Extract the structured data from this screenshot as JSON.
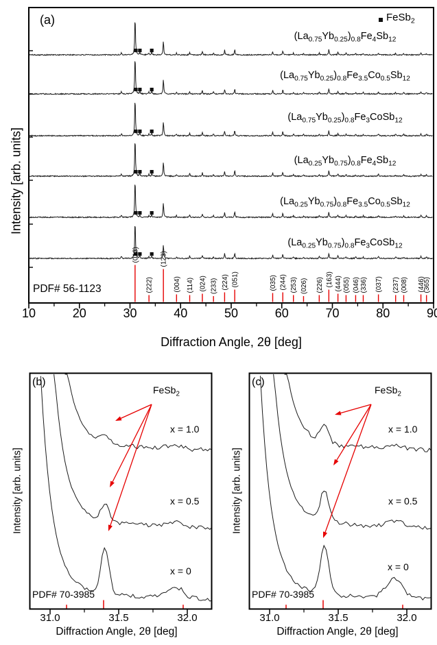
{
  "chart_data": [
    {
      "id": "a",
      "type": "line",
      "panel_tag": "(a)",
      "xlabel": "Diffraction Angle, 2θ [deg]",
      "ylabel": "Intensity [arb. units]",
      "xlim": [
        10,
        90
      ],
      "xticks": [
        "10",
        "20",
        "30",
        "40",
        "50",
        "60",
        "70",
        "80",
        "90"
      ],
      "x_minor_step": 5,
      "legend": {
        "marker": "filled-black-square",
        "label": "FeSb_{2}"
      },
      "series": [
        {
          "label": "(La_{0.75}Yb_{0.25})_{0.8}Fe_{4}Sb_{12}"
        },
        {
          "label": "(La_{0.75}Yb_{0.25})_{0.8}Fe_{3.5}Co_{0.5}Sb_{12}"
        },
        {
          "label": "(La_{0.75}Yb_{0.25})_{0.8}Fe_{3}CoSb_{12}"
        },
        {
          "label": "(La_{0.25}Yb_{0.75})_{0.8}Fe_{4}Sb_{12}"
        },
        {
          "label": "(La_{0.25}Yb_{0.75})_{0.8}Fe_{3.5}Co_{0.5}Sb_{12}"
        },
        {
          "label": "(La_{0.25}Yb_{0.75})_{0.8}Fe_{3}CoSb_{12}"
        }
      ],
      "skutterudite_peaks": [
        [
          28.3,
          6
        ],
        [
          31.0,
          100
        ],
        [
          33.75,
          5
        ],
        [
          36.6,
          38
        ],
        [
          39.2,
          5
        ],
        [
          41.8,
          7
        ],
        [
          44.3,
          9
        ],
        [
          46.5,
          5
        ],
        [
          48.7,
          12
        ],
        [
          50.7,
          14
        ],
        [
          58.2,
          9
        ],
        [
          60.2,
          11
        ],
        [
          62.3,
          5
        ],
        [
          64.3,
          4
        ],
        [
          67.4,
          5
        ],
        [
          69.3,
          14
        ],
        [
          71.1,
          7
        ],
        [
          72.7,
          5
        ],
        [
          74.6,
          4
        ],
        [
          76.1,
          4
        ],
        [
          79.1,
          5
        ],
        [
          82.5,
          4
        ],
        [
          84.1,
          4
        ],
        [
          87.5,
          5
        ],
        [
          88.6,
          4
        ]
      ],
      "impurity_peaks": [
        [
          31.15,
          6
        ],
        [
          31.95,
          7
        ],
        [
          34.3,
          7
        ]
      ],
      "impurity_marker_two_theta": [
        31.15,
        31.95,
        34.3
      ],
      "pdf_reference": {
        "label": "PDF# 56-1123",
        "lines": [
          {
            "hkl": "(013)",
            "two_theta": 31.0,
            "rel": 100
          },
          {
            "hkl": "(222)",
            "two_theta": 33.75,
            "rel": 12
          },
          {
            "hkl": "(123)",
            "two_theta": 36.6,
            "rel": 88
          },
          {
            "hkl": "(004)",
            "two_theta": 39.2,
            "rel": 14
          },
          {
            "hkl": "(114)",
            "two_theta": 41.8,
            "rel": 12
          },
          {
            "hkl": "(024)",
            "two_theta": 44.3,
            "rel": 16
          },
          {
            "hkl": "(233)",
            "two_theta": 46.5,
            "rel": 9
          },
          {
            "hkl": "(224)",
            "two_theta": 48.7,
            "rel": 20
          },
          {
            "hkl": "(051)",
            "two_theta": 50.7,
            "rel": 28
          },
          {
            "hkl": "(035)",
            "two_theta": 58.2,
            "rel": 18
          },
          {
            "hkl": "(244)",
            "two_theta": 60.2,
            "rel": 20
          },
          {
            "hkl": "(253)",
            "two_theta": 62.3,
            "rel": 12
          },
          {
            "hkl": "(026)",
            "two_theta": 64.3,
            "rel": 9
          },
          {
            "hkl": "(226)",
            "two_theta": 67.4,
            "rel": 12
          },
          {
            "hkl": "(163)",
            "two_theta": 69.3,
            "rel": 28
          },
          {
            "hkl": "(444)",
            "two_theta": 71.1,
            "rel": 16
          },
          {
            "hkl": "(055)",
            "two_theta": 72.7,
            "rel": 12
          },
          {
            "hkl": "(046)",
            "two_theta": 74.6,
            "rel": 12
          },
          {
            "hkl": "(336)",
            "two_theta": 76.1,
            "rel": 12
          },
          {
            "hkl": "(037)",
            "two_theta": 79.1,
            "rel": 14
          },
          {
            "hkl": "(237)",
            "two_theta": 82.5,
            "rel": 12
          },
          {
            "hkl": "(008)",
            "two_theta": 84.1,
            "rel": 12
          },
          {
            "hkl": "(446)",
            "two_theta": 87.5,
            "rel": 14
          },
          {
            "hkl": "(365)",
            "two_theta": 88.6,
            "rel": 12
          }
        ]
      }
    },
    {
      "id": "b",
      "type": "line",
      "panel_tag": "(b)",
      "xlabel": "Diffraction Angle, 2θ [deg]",
      "ylabel": "Intensity [arb. units]",
      "xlim": [
        30.85,
        32.19
      ],
      "xticks": [
        "31.0",
        "31.5",
        "32.0"
      ],
      "xtick_values": [
        31.0,
        31.5,
        32.0
      ],
      "x_minor_step": 0.25,
      "annotation": "FeSb_{2}",
      "fesb2_peak_two_theta": 31.4,
      "pdf_reference": {
        "label": "PDF# 70-3985",
        "lines": [
          {
            "two_theta": 31.12,
            "rel": 25
          },
          {
            "two_theta": 31.39,
            "rel": 100
          },
          {
            "two_theta": 31.97,
            "rel": 25
          }
        ]
      },
      "traces": [
        {
          "label": "x = 1.0",
          "edge_onset": 31.125,
          "fesb2_peak_amp": 10,
          "peak_31_9_amp": 5
        },
        {
          "label": "x = 0.5",
          "edge_onset": 31.03,
          "fesb2_peak_amp": 24,
          "peak_31_9_amp": 8
        },
        {
          "label": "x = 0",
          "edge_onset": 30.93,
          "fesb2_peak_amp": 68,
          "peak_31_9_amp": 18
        }
      ]
    },
    {
      "id": "c",
      "type": "line",
      "panel_tag": "(c)",
      "xlabel": "Diffraction Angle, 2θ [deg]",
      "ylabel": "Intensity [arb. units]",
      "xlim": [
        30.85,
        32.19
      ],
      "xticks": [
        "31.0",
        "31.5",
        "32.0"
      ],
      "xtick_values": [
        31.0,
        31.5,
        32.0
      ],
      "x_minor_step": 0.25,
      "annotation": "FeSb_{2}",
      "fesb2_peak_two_theta": 31.4,
      "pdf_reference": {
        "label": "PDF# 70-3985",
        "lines": [
          {
            "two_theta": 31.12,
            "rel": 25
          },
          {
            "two_theta": 31.39,
            "rel": 100
          },
          {
            "two_theta": 31.97,
            "rel": 25
          }
        ]
      },
      "traces": [
        {
          "label": "x = 1.0",
          "edge_onset": 31.125,
          "fesb2_peak_amp": 26,
          "peak_31_9_amp": 6
        },
        {
          "label": "x = 0.5",
          "edge_onset": 31.03,
          "fesb2_peak_amp": 46,
          "peak_31_9_amp": 10
        },
        {
          "label": "x = 0",
          "edge_onset": 30.93,
          "fesb2_peak_amp": 70,
          "peak_31_9_amp": 30
        }
      ]
    }
  ]
}
